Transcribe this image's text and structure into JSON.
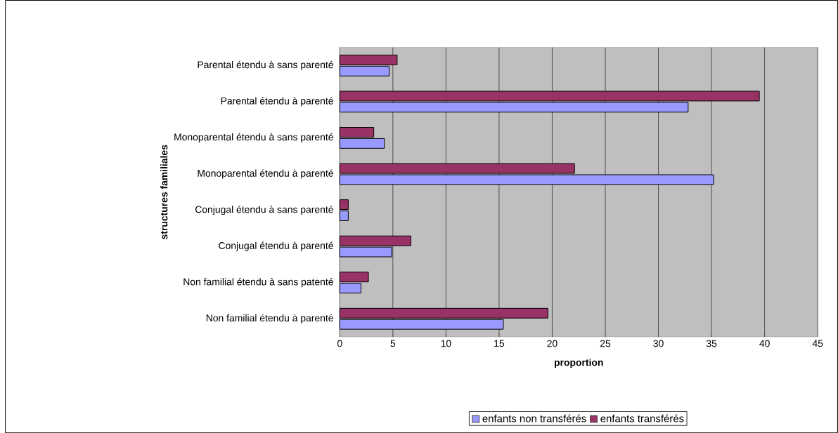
{
  "chart_data": {
    "type": "bar",
    "orientation": "horizontal",
    "xlabel": "proportion",
    "ylabel": "structures familiales",
    "categories": [
      "Parental étendu à sans parenté",
      "Parental étendu à parenté",
      "Monoparental étendu à sans parenté",
      "Monoparental étendu à parenté",
      "Conjugal étendu à sans parenté",
      "Conjugal étendu à parenté",
      "Non familial étendu à sans patenté",
      "Non familial étendu à parenté"
    ],
    "series": [
      {
        "name": "enfants non transférés",
        "color": "#9999ff",
        "values": [
          4.65,
          32.8,
          4.2,
          35.2,
          0.8,
          4.9,
          2.0,
          15.4
        ]
      },
      {
        "name": "enfants transférés",
        "color": "#993366",
        "values": [
          5.4,
          39.5,
          3.2,
          22.1,
          0.8,
          6.7,
          2.7,
          19.6
        ]
      }
    ],
    "xlim": [
      0,
      45
    ],
    "xticks": [
      0,
      5,
      10,
      15,
      20,
      25,
      30,
      35,
      40,
      45
    ],
    "grid": "x",
    "legend": "bottom"
  }
}
